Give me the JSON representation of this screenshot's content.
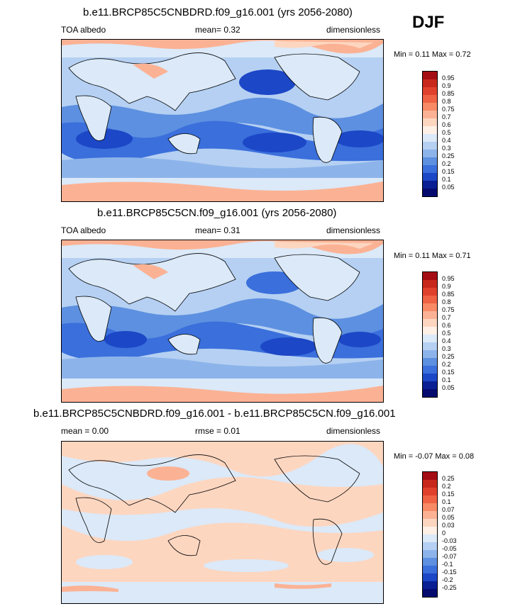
{
  "season": "DJF",
  "panels": [
    {
      "title": "b.e11.BRCP85C5CNBDRD.f09_g16.001 (yrs 2056-2080)",
      "left_label": "TOA albedo",
      "mid_label": "mean=   0.32",
      "right_label": "dimensionless",
      "minmax": "Min =   0.11 Max =   0.72",
      "colorbar_labels": [
        "0.95",
        "0.9",
        "0.85",
        "0.8",
        "0.75",
        "0.7",
        "0.6",
        "0.5",
        "0.4",
        "0.3",
        "0.25",
        "0.2",
        "0.15",
        "0.1",
        "0.05"
      ],
      "colorbar_colors": [
        "#a50d14",
        "#c8281b",
        "#e0412c",
        "#ef6243",
        "#f88a65",
        "#fbb294",
        "#fdd6c0",
        "#fff0e6",
        "#dbe9f8",
        "#b5d0f2",
        "#8db4ea",
        "#5d90e0",
        "#3a6fdc",
        "#1c47c6",
        "#0a1f93",
        "#050b6e"
      ]
    },
    {
      "title": "b.e11.BRCP85C5CN.f09_g16.001 (yrs 2056-2080)",
      "left_label": "TOA albedo",
      "mid_label": "mean=   0.31",
      "right_label": "dimensionless",
      "minmax": "Min =   0.11 Max =   0.71",
      "colorbar_labels": [
        "0.95",
        "0.9",
        "0.85",
        "0.8",
        "0.75",
        "0.7",
        "0.6",
        "0.5",
        "0.4",
        "0.3",
        "0.25",
        "0.2",
        "0.15",
        "0.1",
        "0.05"
      ],
      "colorbar_colors": [
        "#a50d14",
        "#c8281b",
        "#e0412c",
        "#ef6243",
        "#f88a65",
        "#fbb294",
        "#fdd6c0",
        "#fff0e6",
        "#dbe9f8",
        "#b5d0f2",
        "#8db4ea",
        "#5d90e0",
        "#3a6fdc",
        "#1c47c6",
        "#0a1f93",
        "#050b6e"
      ]
    },
    {
      "title": "b.e11.BRCP85C5CNBDRD.f09_g16.001 - b.e11.BRCP85C5CN.f09_g16.001",
      "left_label": "mean =   0.00",
      "mid_label": "rmse =   0.01",
      "right_label": "dimensionless",
      "minmax": "Min =  -0.07 Max =   0.08",
      "colorbar_labels": [
        "0.25",
        "0.2",
        "0.15",
        "0.1",
        "0.07",
        "0.05",
        "0.03",
        "0",
        "-0.03",
        "-0.05",
        "-0.07",
        "-0.1",
        "-0.15",
        "-0.2",
        "-0.25"
      ],
      "colorbar_colors": [
        "#a50d14",
        "#c8281b",
        "#e0412c",
        "#ef6243",
        "#f88a65",
        "#fbb294",
        "#fdd6c0",
        "#fff0e6",
        "#dbe9f8",
        "#b5d0f2",
        "#8db4ea",
        "#5d90e0",
        "#3a6fdc",
        "#1c47c6",
        "#0a1f93",
        "#050b6e"
      ]
    }
  ]
}
